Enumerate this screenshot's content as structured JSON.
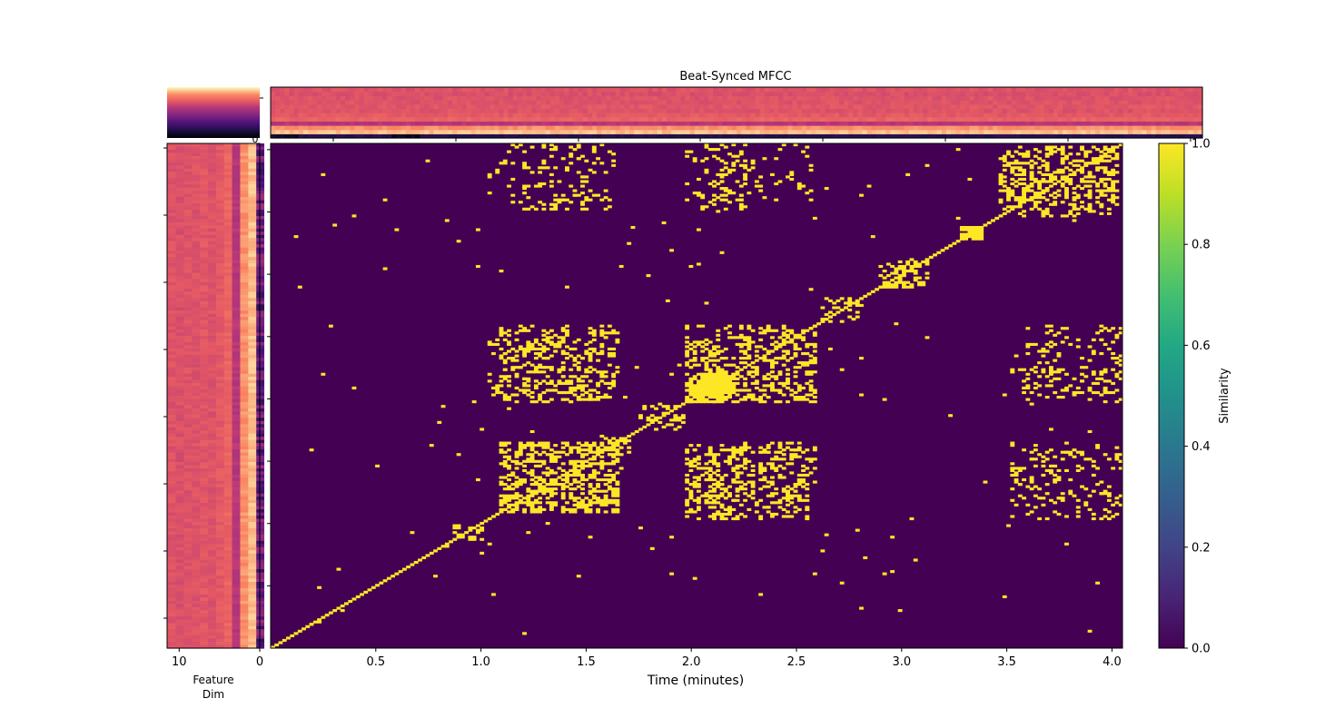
{
  "chart_data": {
    "type": "heatmap",
    "title": "Beat-Synced MFCC",
    "xlabel": "Time (minutes)",
    "x_range": [
      0,
      4.05
    ],
    "x_ticks": [
      {
        "value": 0.5,
        "label": "0.5"
      },
      {
        "value": 1.0,
        "label": "1.0"
      },
      {
        "value": 1.5,
        "label": "1.5"
      },
      {
        "value": 2.0,
        "label": "2.0"
      },
      {
        "value": 2.5,
        "label": "2.5"
      },
      {
        "value": 3.0,
        "label": "3.0"
      },
      {
        "value": 3.5,
        "label": "3.5"
      },
      {
        "value": 4.0,
        "label": "4.0"
      }
    ],
    "feature_axis": {
      "label_line1": "Feature",
      "label_line2": "Dim",
      "range": [
        11.5,
        0
      ],
      "ticks": [
        {
          "value": 10,
          "label": "10"
        },
        {
          "value": 0,
          "label": "0"
        }
      ]
    },
    "mini_colorbar_tick_label": "0",
    "colorbar": {
      "label": "Similarity",
      "colormap": "viridis",
      "range": [
        0.0,
        1.0
      ],
      "ticks": [
        {
          "value": 0.0,
          "label": "0.0"
        },
        {
          "value": 0.2,
          "label": "0.2"
        },
        {
          "value": 0.4,
          "label": "0.4"
        },
        {
          "value": 0.6,
          "label": "0.6"
        },
        {
          "value": 0.8,
          "label": "0.8"
        },
        {
          "value": 1.0,
          "label": "1.0"
        }
      ]
    },
    "similarity_colors": {
      "low": "#440154",
      "high": "#fde725"
    },
    "mfcc_colormap": "magma",
    "blocks": [
      {
        "x": [
          3.28,
          3.38
        ],
        "y": [
          3.28,
          3.38
        ],
        "density": 0.95
      },
      {
        "x": [
          2.05,
          2.2
        ],
        "y": [
          2.05,
          2.2
        ],
        "density": 0.95
      },
      {
        "x": [
          1.98,
          2.15
        ],
        "y": [
          1.98,
          2.15
        ],
        "density": 0.7
      },
      {
        "x": [
          3.47,
          4.03
        ],
        "y": [
          3.47,
          4.03
        ],
        "density": 0.35
      },
      {
        "x": [
          2.9,
          3.12
        ],
        "y": [
          2.9,
          3.12
        ],
        "density": 0.4
      },
      {
        "x": [
          1.1,
          1.65
        ],
        "y": [
          1.1,
          1.65
        ],
        "density": 0.45
      },
      {
        "x": [
          1.97,
          2.58
        ],
        "y": [
          1.97,
          2.58
        ],
        "density": 0.3
      },
      {
        "x": [
          1.76,
          1.96
        ],
        "y": [
          1.76,
          1.96
        ],
        "density": 0.2
      },
      {
        "x": [
          2.62,
          2.8
        ],
        "y": [
          2.62,
          2.8
        ],
        "density": 0.25
      },
      {
        "x": [
          0.88,
          1.0
        ],
        "y": [
          0.88,
          1.0
        ],
        "density": 0.3
      },
      {
        "x": [
          1.55,
          1.7
        ],
        "y": [
          1.55,
          1.7
        ],
        "density": 0.3
      },
      {
        "x": [
          1.04,
          1.65
        ],
        "y": [
          1.97,
          2.25
        ],
        "density": 0.22
      },
      {
        "x": [
          1.97,
          2.25
        ],
        "y": [
          1.04,
          1.65
        ],
        "density": 0.22
      },
      {
        "x": [
          1.04,
          1.65
        ],
        "y": [
          2.33,
          2.55
        ],
        "density": 0.18
      },
      {
        "x": [
          2.33,
          2.55
        ],
        "y": [
          1.04,
          1.65
        ],
        "density": 0.18
      },
      {
        "x": [
          1.97,
          2.58
        ],
        "y": [
          1.1,
          1.62
        ],
        "density": 0.16
      },
      {
        "x": [
          1.1,
          1.62
        ],
        "y": [
          1.97,
          2.58
        ],
        "density": 0.16
      },
      {
        "x": [
          1.04,
          1.65
        ],
        "y": [
          3.52,
          4.05
        ],
        "density": 0.09
      },
      {
        "x": [
          3.52,
          4.05
        ],
        "y": [
          1.04,
          1.65
        ],
        "density": 0.09
      },
      {
        "x": [
          1.97,
          2.58
        ],
        "y": [
          3.6,
          4.05
        ],
        "density": 0.11
      },
      {
        "x": [
          3.6,
          4.05
        ],
        "y": [
          1.97,
          2.58
        ],
        "density": 0.11
      },
      {
        "x": [
          3.52,
          4.05
        ],
        "y": [
          2.05,
          2.25
        ],
        "density": 0.14
      },
      {
        "x": [
          2.05,
          2.25
        ],
        "y": [
          3.52,
          4.05
        ],
        "density": 0.14
      },
      {
        "x": [
          3.52,
          4.05
        ],
        "y": [
          1.15,
          1.6
        ],
        "density": 0.08
      },
      {
        "x": [
          1.15,
          1.6
        ],
        "y": [
          3.52,
          4.05
        ],
        "density": 0.08
      },
      {
        "x": [
          0.12,
          4.0
        ],
        "y": [
          0.12,
          4.0
        ],
        "density": 0.003
      }
    ]
  }
}
